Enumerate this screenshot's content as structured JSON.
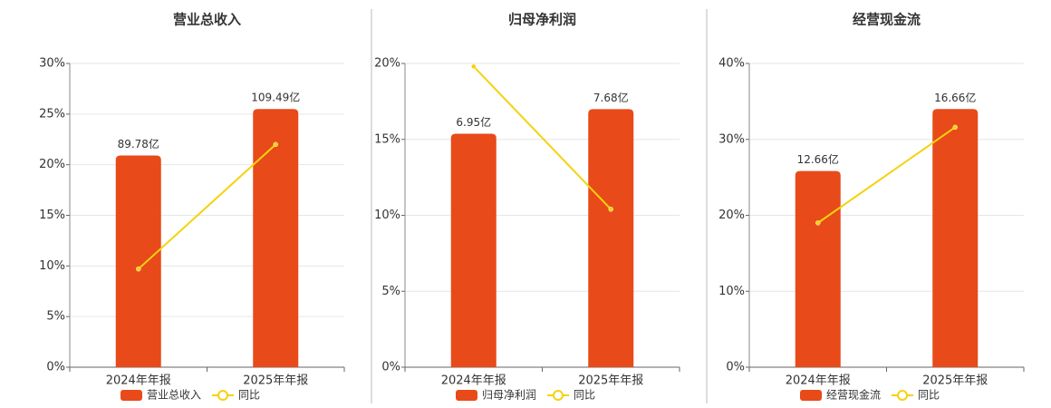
{
  "chart_data": [
    {
      "type": "bar",
      "title": "营业总收入",
      "categories": [
        "2024年年报",
        "2025年年报"
      ],
      "series": [
        {
          "name": "营业总收入",
          "type": "bar",
          "axis": "y2",
          "color": "#e84a19",
          "values": [
            89.78,
            109.49
          ],
          "value_labels": [
            "89.78亿",
            "109.49亿"
          ]
        },
        {
          "name": "同比",
          "type": "line",
          "color": "#f5d20f",
          "values": [
            9.7,
            22
          ]
        }
      ],
      "ylim": [
        0,
        30
      ],
      "yticks": [
        {
          "value": 0,
          "label": "0%"
        },
        {
          "value": 5,
          "label": "5%"
        },
        {
          "value": 10,
          "label": "10%"
        },
        {
          "value": 15,
          "label": "15%"
        },
        {
          "value": 20,
          "label": "20%"
        },
        {
          "value": 25,
          "label": "25%"
        },
        {
          "value": 30,
          "label": "30%"
        }
      ],
      "y2lim": [
        0,
        128.8
      ],
      "grid": true
    },
    {
      "type": "bar",
      "title": "归母净利润",
      "categories": [
        "2024年年报",
        "2025年年报"
      ],
      "series": [
        {
          "name": "归母净利润",
          "type": "bar",
          "axis": "y2",
          "color": "#e84a19",
          "values": [
            6.95,
            7.68
          ],
          "value_labels": [
            "6.95亿",
            "7.68亿"
          ]
        },
        {
          "name": "同比",
          "type": "line",
          "color": "#f5d20f",
          "values": [
            19.8,
            10.4
          ]
        }
      ],
      "ylim": [
        0,
        20
      ],
      "yticks": [
        {
          "value": 0,
          "label": "0%"
        },
        {
          "value": 5,
          "label": "5%"
        },
        {
          "value": 10,
          "label": "10%"
        },
        {
          "value": 15,
          "label": "15%"
        },
        {
          "value": 20,
          "label": "20%"
        }
      ],
      "y2lim": [
        0,
        9.04
      ],
      "grid": true
    },
    {
      "type": "bar",
      "title": "经营现金流",
      "categories": [
        "2024年年报",
        "2025年年报"
      ],
      "series": [
        {
          "name": "经营现金流",
          "type": "bar",
          "axis": "y2",
          "color": "#e84a19",
          "values": [
            12.66,
            16.66
          ],
          "value_labels": [
            "12.66亿",
            "16.66亿"
          ]
        },
        {
          "name": "同比",
          "type": "line",
          "color": "#f5d20f",
          "values": [
            19,
            31.6
          ]
        }
      ],
      "ylim": [
        0,
        40
      ],
      "yticks": [
        {
          "value": 0,
          "label": "0%"
        },
        {
          "value": 10,
          "label": "10%"
        },
        {
          "value": 20,
          "label": "20%"
        },
        {
          "value": 30,
          "label": "30%"
        },
        {
          "value": 40,
          "label": "40%"
        }
      ],
      "y2lim": [
        0,
        19.6
      ],
      "grid": true
    }
  ]
}
